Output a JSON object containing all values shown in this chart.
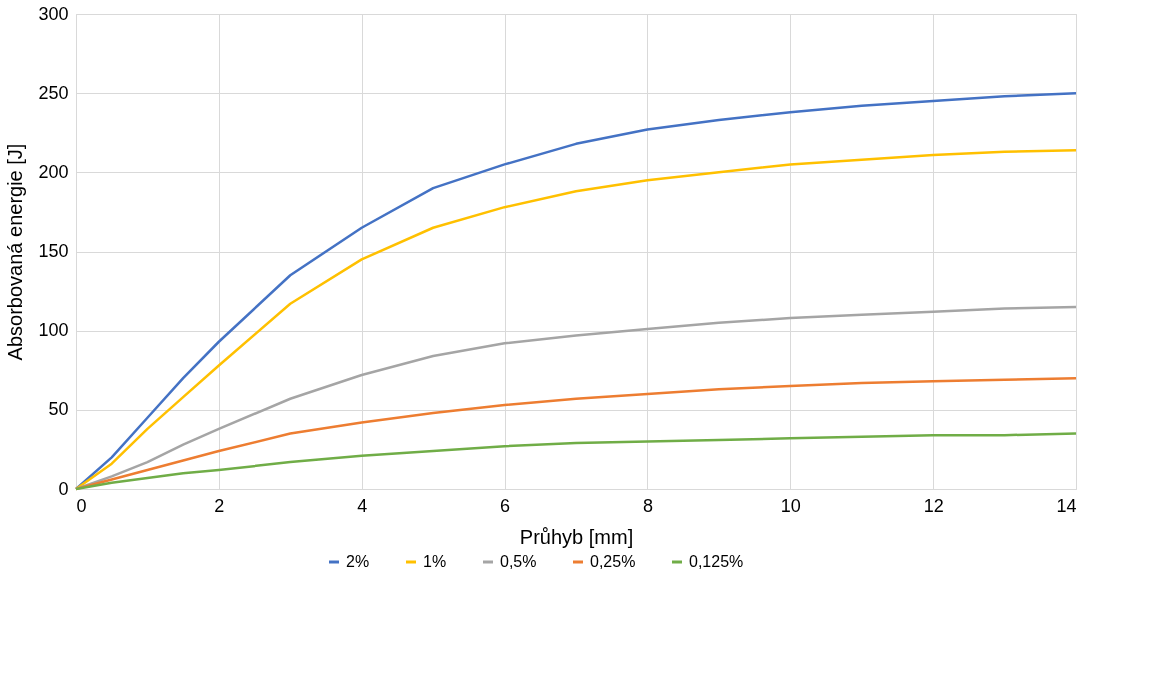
{
  "chart_data": {
    "type": "line",
    "xlabel": "Průhyb [mm]",
    "ylabel": "Absorbovaná energie [J]",
    "x": [
      0,
      0.5,
      1,
      1.5,
      2,
      3,
      4,
      5,
      6,
      7,
      8,
      9,
      10,
      11,
      12,
      13,
      14
    ],
    "xlim": [
      0,
      14
    ],
    "xticks": [
      0,
      2,
      4,
      6,
      8,
      10,
      12,
      14
    ],
    "ylim": [
      0,
      300
    ],
    "yticks": [
      0,
      50,
      100,
      150,
      200,
      250,
      300
    ],
    "grid": true,
    "legend": "bottom",
    "marker": "none",
    "line_style": "solid",
    "series": [
      {
        "name": "2%",
        "color": "#4472c4",
        "values": [
          0,
          20,
          45,
          70,
          93,
          135,
          165,
          190,
          205,
          218,
          227,
          233,
          238,
          242,
          245,
          248,
          250
        ]
      },
      {
        "name": "1%",
        "color": "#ffc000",
        "values": [
          0,
          16,
          38,
          58,
          78,
          117,
          145,
          165,
          178,
          188,
          195,
          200,
          205,
          208,
          211,
          213,
          214
        ]
      },
      {
        "name": "0,5%",
        "color": "#a5a5a5",
        "values": [
          0,
          8,
          17,
          28,
          38,
          57,
          72,
          84,
          92,
          97,
          101,
          105,
          108,
          110,
          112,
          114,
          115
        ]
      },
      {
        "name": "0,25%",
        "color": "#ed7d31",
        "values": [
          0,
          6,
          12,
          18,
          24,
          35,
          42,
          48,
          53,
          57,
          60,
          63,
          65,
          67,
          68,
          69,
          70
        ]
      },
      {
        "name": "0,125%",
        "color": "#70ad47",
        "values": [
          0,
          4,
          7,
          10,
          12,
          17,
          21,
          24,
          27,
          29,
          30,
          31,
          32,
          33,
          34,
          34,
          35
        ]
      }
    ]
  }
}
